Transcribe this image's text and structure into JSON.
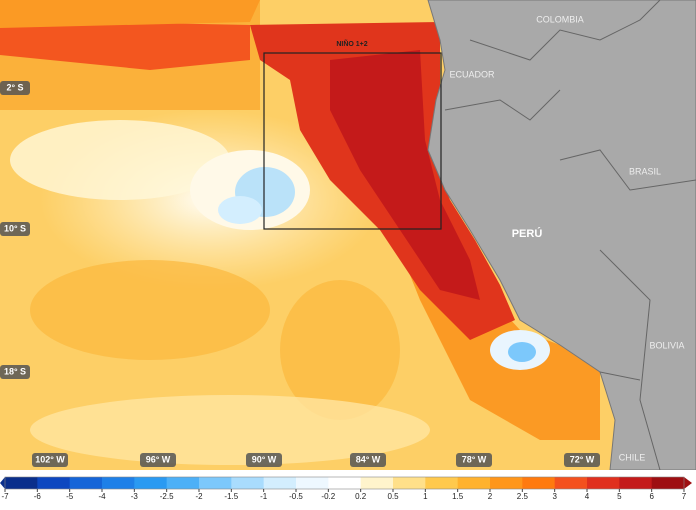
{
  "map": {
    "countries": [
      "COLOMBIA",
      "ECUADOR",
      "BRASIL",
      "PERÚ",
      "BOLIVIA",
      "CHILE"
    ],
    "latitudes": [
      "2° S",
      "10° S",
      "18° S"
    ],
    "longitudes": [
      "102° W",
      "96° W",
      "90° W",
      "84° W",
      "78° W",
      "72° W"
    ],
    "region_label": "NIÑO 1+2"
  },
  "colorbar": {
    "ticks": [
      -7,
      -6,
      -5,
      -4,
      -3,
      -2.5,
      -2,
      -1.5,
      -1,
      -0.5,
      -0.2,
      0.2,
      0.5,
      1,
      1.5,
      2,
      2.5,
      3,
      4,
      5,
      6,
      7
    ],
    "colors": [
      "#0a2f8c",
      "#0d47c0",
      "#1565d8",
      "#1e80e8",
      "#2a9af2",
      "#4db0f7",
      "#7cc8fb",
      "#a9dcfd",
      "#d3eefe",
      "#eef8ff",
      "#ffffff",
      "#fff4cc",
      "#ffe08a",
      "#ffc94d",
      "#ffb22e",
      "#ff961a",
      "#ff7a0f",
      "#f4511e",
      "#e0301e",
      "#c41a1a",
      "#9e0f12"
    ]
  }
}
